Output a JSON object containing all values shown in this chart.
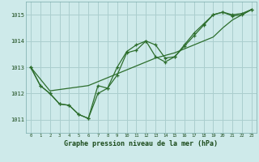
{
  "title": "Graphe pression niveau de la mer (hPa)",
  "background_color": "#ceeaea",
  "grid_color": "#aacece",
  "line_color": "#2d6e2d",
  "x_ticks": [
    0,
    1,
    2,
    3,
    4,
    5,
    6,
    7,
    8,
    9,
    10,
    11,
    12,
    13,
    14,
    15,
    16,
    17,
    18,
    19,
    20,
    21,
    22,
    23
  ],
  "ylim": [
    1010.5,
    1015.5
  ],
  "yticks": [
    1011,
    1012,
    1013,
    1014,
    1015
  ],
  "series": {
    "line1": [
      1013.0,
      1012.3,
      1012.0,
      1011.6,
      1011.55,
      1011.2,
      1011.05,
      1012.0,
      1012.2,
      1012.7,
      1013.55,
      1013.65,
      1014.0,
      1013.85,
      1013.35,
      1013.4,
      1013.8,
      1014.2,
      1014.6,
      1015.0,
      1015.1,
      1015.0,
      1015.05,
      1015.2
    ],
    "line2": [
      1013.0,
      1012.3,
      1012.0,
      1011.6,
      1011.55,
      1011.2,
      1011.05,
      1012.3,
      1012.2,
      1013.0,
      1013.6,
      1013.85,
      1014.0,
      1013.4,
      1013.2,
      1013.4,
      1013.85,
      1014.3,
      1014.65,
      1015.0,
      1015.1,
      1014.95,
      1015.0,
      1015.2
    ],
    "line3_trend": [
      1013.0,
      1012.55,
      1012.1,
      1012.15,
      1012.2,
      1012.25,
      1012.3,
      1012.45,
      1012.6,
      1012.75,
      1012.9,
      1013.05,
      1013.2,
      1013.35,
      1013.45,
      1013.55,
      1013.7,
      1013.85,
      1014.0,
      1014.15,
      1014.5,
      1014.8,
      1015.0,
      1015.2
    ]
  }
}
